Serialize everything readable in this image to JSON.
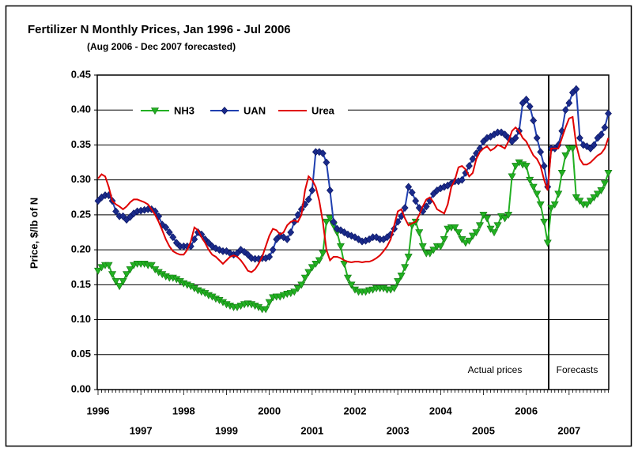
{
  "chart_data": {
    "type": "line",
    "title": "Fertilizer N Monthly Prices, Jan 1996 - Jul 2006",
    "subtitle": "(Aug 2006 - Dec 2007 forecasted)",
    "y_label": "Price, $/lb of N",
    "annotations": [
      "Actual prices",
      "Forecasts"
    ],
    "legend": "upper left",
    "grid": true,
    "ylim": [
      0,
      0.45
    ],
    "yticks": [
      {
        "value": 0,
        "label": "0.00"
      },
      {
        "value": 0.05,
        "label": "0.05"
      },
      {
        "value": 0.1,
        "label": "0.10"
      },
      {
        "value": 0.15,
        "label": "0.15"
      },
      {
        "value": 0.2,
        "label": "0.20"
      },
      {
        "value": 0.25,
        "label": "0.25"
      },
      {
        "value": 0.3,
        "label": "0.30"
      },
      {
        "value": 0.35,
        "label": "0.35"
      },
      {
        "value": 0.4,
        "label": "0.40"
      },
      {
        "value": 0.45,
        "label": "0.45"
      }
    ],
    "categories": [
      "1996",
      null,
      null,
      null,
      null,
      null,
      null,
      null,
      null,
      null,
      null,
      null,
      "1997",
      null,
      null,
      null,
      null,
      null,
      null,
      null,
      null,
      null,
      null,
      null,
      "1998",
      null,
      null,
      null,
      null,
      null,
      null,
      null,
      null,
      null,
      null,
      null,
      "1999",
      null,
      null,
      null,
      null,
      null,
      null,
      null,
      null,
      null,
      null,
      null,
      "2000",
      null,
      null,
      null,
      null,
      null,
      null,
      null,
      null,
      null,
      null,
      null,
      "2001",
      null,
      null,
      null,
      null,
      null,
      null,
      null,
      null,
      null,
      null,
      null,
      "2002",
      null,
      null,
      null,
      null,
      null,
      null,
      null,
      null,
      null,
      null,
      null,
      "2003",
      null,
      null,
      null,
      null,
      null,
      null,
      null,
      null,
      null,
      null,
      null,
      "2004",
      null,
      null,
      null,
      null,
      null,
      null,
      null,
      null,
      null,
      null,
      null,
      "2005",
      null,
      null,
      null,
      null,
      null,
      null,
      null,
      null,
      null,
      null,
      null,
      "2006",
      null,
      null,
      null,
      null,
      null,
      null,
      null,
      null,
      null,
      null,
      null,
      "2007",
      null,
      null,
      null,
      null,
      null,
      null,
      null,
      null,
      null,
      null,
      null
    ],
    "series": [
      {
        "name": "NH3",
        "color": "#22b022",
        "marker": "triangle-down",
        "values": [
          0.17,
          0.175,
          0.178,
          0.178,
          0.165,
          0.155,
          0.148,
          0.155,
          0.165,
          0.172,
          0.178,
          0.18,
          0.18,
          0.18,
          0.178,
          0.178,
          0.172,
          0.168,
          0.165,
          0.162,
          0.16,
          0.16,
          0.158,
          0.155,
          0.152,
          0.15,
          0.148,
          0.145,
          0.142,
          0.14,
          0.138,
          0.135,
          0.133,
          0.13,
          0.128,
          0.125,
          0.122,
          0.12,
          0.118,
          0.118,
          0.12,
          0.122,
          0.123,
          0.122,
          0.12,
          0.118,
          0.115,
          0.115,
          0.125,
          0.132,
          0.133,
          0.133,
          0.135,
          0.137,
          0.138,
          0.14,
          0.145,
          0.15,
          0.16,
          0.168,
          0.175,
          0.18,
          0.185,
          0.195,
          0.24,
          0.245,
          0.235,
          0.225,
          0.205,
          0.18,
          0.16,
          0.15,
          0.143,
          0.14,
          0.14,
          0.14,
          0.142,
          0.143,
          0.145,
          0.145,
          0.145,
          0.143,
          0.143,
          0.145,
          0.155,
          0.163,
          0.175,
          0.19,
          0.235,
          0.24,
          0.225,
          0.205,
          0.195,
          0.195,
          0.2,
          0.205,
          0.205,
          0.215,
          0.23,
          0.232,
          0.232,
          0.225,
          0.215,
          0.21,
          0.213,
          0.22,
          0.225,
          0.235,
          0.25,
          0.245,
          0.23,
          0.225,
          0.235,
          0.248,
          0.245,
          0.25,
          0.305,
          0.32,
          0.325,
          0.322,
          0.32,
          0.3,
          0.29,
          0.28,
          0.265,
          0.24,
          0.21,
          0.26,
          0.265,
          0.28,
          0.31,
          0.335,
          0.345,
          0.345,
          0.275,
          0.27,
          0.265,
          0.265,
          0.27,
          0.275,
          0.28,
          0.285,
          0.295,
          0.31
        ]
      },
      {
        "name": "UAN",
        "color": "#1f3fb0",
        "marker": "diamond",
        "values": [
          0.27,
          0.275,
          0.278,
          0.278,
          0.27,
          0.255,
          0.248,
          0.248,
          0.243,
          0.247,
          0.252,
          0.255,
          0.256,
          0.257,
          0.258,
          0.258,
          0.255,
          0.248,
          0.236,
          0.232,
          0.225,
          0.218,
          0.21,
          0.205,
          0.205,
          0.205,
          0.205,
          0.215,
          0.225,
          0.222,
          0.215,
          0.21,
          0.205,
          0.202,
          0.2,
          0.198,
          0.198,
          0.195,
          0.193,
          0.195,
          0.2,
          0.197,
          0.193,
          0.188,
          0.187,
          0.187,
          0.188,
          0.188,
          0.19,
          0.2,
          0.215,
          0.22,
          0.218,
          0.215,
          0.225,
          0.24,
          0.25,
          0.258,
          0.265,
          0.272,
          0.285,
          0.34,
          0.34,
          0.338,
          0.325,
          0.285,
          0.24,
          0.23,
          0.228,
          0.225,
          0.222,
          0.22,
          0.218,
          0.215,
          0.212,
          0.213,
          0.215,
          0.218,
          0.218,
          0.215,
          0.215,
          0.218,
          0.222,
          0.23,
          0.24,
          0.248,
          0.26,
          0.29,
          0.282,
          0.27,
          0.26,
          0.255,
          0.262,
          0.27,
          0.28,
          0.285,
          0.288,
          0.29,
          0.292,
          0.295,
          0.298,
          0.298,
          0.3,
          0.31,
          0.32,
          0.33,
          0.338,
          0.345,
          0.355,
          0.36,
          0.362,
          0.365,
          0.368,
          0.368,
          0.365,
          0.36,
          0.355,
          0.36,
          0.37,
          0.41,
          0.415,
          0.405,
          0.385,
          0.36,
          0.34,
          0.32,
          0.29,
          0.345,
          0.345,
          0.35,
          0.37,
          0.4,
          0.41,
          0.425,
          0.43,
          0.36,
          0.35,
          0.348,
          0.345,
          0.35,
          0.36,
          0.365,
          0.375,
          0.395
        ]
      },
      {
        "name": "Urea",
        "color": "#e00000",
        "values": [
          0.302,
          0.308,
          0.305,
          0.29,
          0.27,
          0.265,
          0.262,
          0.258,
          0.262,
          0.268,
          0.272,
          0.272,
          0.27,
          0.268,
          0.265,
          0.258,
          0.25,
          0.24,
          0.228,
          0.215,
          0.205,
          0.198,
          0.195,
          0.193,
          0.193,
          0.2,
          0.212,
          0.232,
          0.228,
          0.218,
          0.21,
          0.2,
          0.193,
          0.19,
          0.185,
          0.18,
          0.185,
          0.19,
          0.192,
          0.19,
          0.185,
          0.178,
          0.17,
          0.168,
          0.172,
          0.18,
          0.19,
          0.205,
          0.22,
          0.23,
          0.228,
          0.222,
          0.225,
          0.235,
          0.24,
          0.242,
          0.24,
          0.25,
          0.285,
          0.305,
          0.3,
          0.29,
          0.27,
          0.24,
          0.2,
          0.185,
          0.19,
          0.19,
          0.188,
          0.185,
          0.183,
          0.182,
          0.183,
          0.183,
          0.182,
          0.183,
          0.183,
          0.185,
          0.188,
          0.192,
          0.198,
          0.205,
          0.215,
          0.235,
          0.255,
          0.258,
          0.245,
          0.235,
          0.238,
          0.24,
          0.25,
          0.262,
          0.272,
          0.275,
          0.268,
          0.258,
          0.255,
          0.252,
          0.265,
          0.29,
          0.3,
          0.318,
          0.32,
          0.315,
          0.305,
          0.31,
          0.33,
          0.34,
          0.345,
          0.348,
          0.342,
          0.345,
          0.35,
          0.348,
          0.345,
          0.355,
          0.37,
          0.375,
          0.37,
          0.36,
          0.355,
          0.345,
          0.335,
          0.33,
          0.32,
          0.3,
          0.285,
          0.345,
          0.345,
          0.345,
          0.36,
          0.375,
          0.388,
          0.39,
          0.35,
          0.33,
          0.322,
          0.322,
          0.325,
          0.33,
          0.335,
          0.338,
          0.345,
          0.36
        ]
      }
    ]
  }
}
